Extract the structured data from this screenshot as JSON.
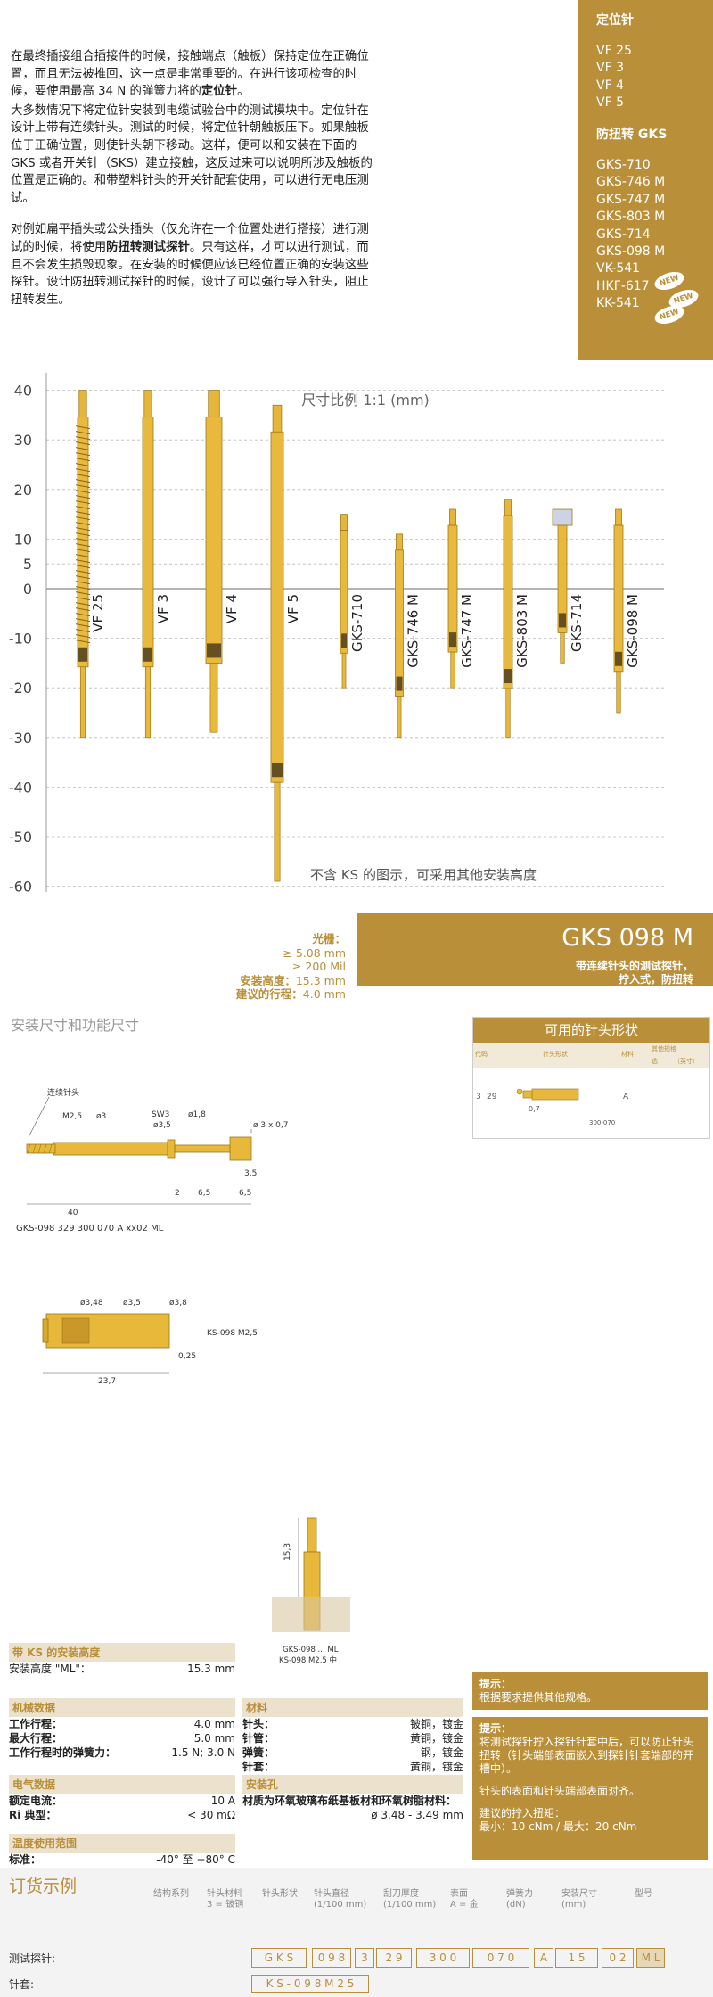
{
  "intro": {
    "p1_a": "在最终插接组合插接件的时候，接触端点（触板）保持定位在正确位置，而且无法被推回，这一点是非常重要的。在进行该项检查的时候，要使用最高 34 N 的弹簧力将的",
    "p1_b": "定位针",
    "p1_c": "。",
    "p2": "大多数情况下将定位针安装到电缆试验台中的测试模块中。定位针在设计上带有连续针头。测试的时候，将定位针朝触板压下。如果触板位于正确位置，则使针头朝下移动。这样，便可以和安装在下面的 GKS 或者开关针（SKS）建立接触，这反过来可以说明所涉及触板的位置是正确的。和带塑料针头的开关针配套使用，可以进行无电压测试。",
    "p3_a": "对例如扁平插头或公头插头（仅允许在一个位置处进行搭接）进行测试的时候，将使用",
    "p3_b": "防扭转测试探针",
    "p3_c": "。只有这样，才可以进行测试，而且不会发生损毁现象。在安装的时候便应该已经位置正确的安装这些探针。设计防扭转测试探针的时候，设计了可以强行导入针头，阻止扭转发生。"
  },
  "sidebar": {
    "heading1": "定位针",
    "group1": [
      "VF 25",
      "VF 3",
      "VF 4",
      "VF 5"
    ],
    "heading2": "防扭转 GKS",
    "group2": [
      "GKS-710",
      "GKS-746 M",
      "GKS-747 M",
      "GKS-803 M",
      "GKS-714",
      "GKS-098 M",
      "VK-541",
      "HKF-617",
      "KK-541"
    ],
    "new_badge": "NEW"
  },
  "scale_chart": {
    "scale_label": "尺寸比例 1:1 (mm)",
    "note": "不含 KS 的图示，可采用其他安装高度",
    "ticks": [
      40,
      30,
      20,
      10,
      5,
      0,
      -10,
      -20,
      -30,
      -40,
      -50,
      -60
    ],
    "probes": [
      {
        "name": "VF 25",
        "top": 40,
        "bottom": -30
      },
      {
        "name": "VF 3",
        "top": 40,
        "bottom": -30
      },
      {
        "name": "VF 4",
        "top": 40,
        "bottom": -29
      },
      {
        "name": "VF 5",
        "top": 37,
        "bottom": -59
      },
      {
        "name": "GKS-710",
        "top": 15,
        "bottom": -20
      },
      {
        "name": "GKS-746 M",
        "top": 11,
        "bottom": -30
      },
      {
        "name": "GKS-747 M",
        "top": 16,
        "bottom": -20
      },
      {
        "name": "GKS-803 M",
        "top": 18,
        "bottom": -30
      },
      {
        "name": "GKS-714",
        "top": 16,
        "bottom": -15
      },
      {
        "name": "GKS-098 M",
        "top": 16,
        "bottom": -25
      }
    ]
  },
  "spec_left": {
    "grid_label": "光栅：",
    "grid_v1": "≥ 5.08 mm",
    "grid_v2": "≥ 200 Mil",
    "install_label": "安装高度：",
    "install_value": "15.3 mm",
    "stroke_label": "建议的行程：",
    "stroke_value": "4.0 mm"
  },
  "banner": {
    "title": "GKS 098 M",
    "sub1": "带连续针头的测试探针，",
    "sub2": "拧入式，防扭转"
  },
  "dims_title": "安装尺寸和功能尺寸",
  "drawing1": {
    "label_lead": "连续针头",
    "m25": "M2,5",
    "d3": "ø3",
    "sw3": "SW3",
    "d35": "ø3,5",
    "d18": "ø1,8",
    "d3x07": "ø 3 x 0,7",
    "dim35": "3,5",
    "dim2": "2",
    "dim65a": "6,5",
    "dim65b": "6,5",
    "dim40": "40",
    "code": "GKS-098 329 300 070 A xx02 ML"
  },
  "drawing2": {
    "d348": "ø3,48",
    "d35": "ø3,5",
    "d38": "ø3,8",
    "dim025": "0,25",
    "dim237": "23,7",
    "label": "KS-098 M2,5"
  },
  "drawing3": {
    "dim153": "15,3",
    "label1": "GKS-098 ... ML",
    "label2": "KS-098 M2,5 中"
  },
  "tip_table": {
    "title": "可用的针头形状",
    "col_code": "代码",
    "col_shape": "针头形状",
    "col_material": "材料",
    "col_other": "其他规格",
    "sub1": "选",
    "sub2": "（英寸）",
    "row_code1": "3",
    "row_code2": "29",
    "row_dim": "0,7",
    "row_part": "300-070",
    "row_material": "A"
  },
  "ks_section": {
    "heading": "带 KS 的安装高度",
    "label": "安装高度 \"ML\"：",
    "value": "15.3 mm"
  },
  "mech": {
    "heading": "机械数据",
    "rows": [
      {
        "label": "工作行程：",
        "value": "4.0 mm"
      },
      {
        "label": "最大行程：",
        "value": "5.0 mm"
      },
      {
        "label": "工作行程时的弹簧力：",
        "value": "1.5 N; 3.0 N"
      }
    ]
  },
  "material": {
    "heading": "材料",
    "rows": [
      {
        "label": "针头：",
        "value": "铍铜，镀金"
      },
      {
        "label": "针管：",
        "value": "黄铜，镀金"
      },
      {
        "label": "弹簧：",
        "value": "钢，镀金"
      },
      {
        "label": "针套：",
        "value": "黄铜，镀金"
      }
    ]
  },
  "electrical": {
    "heading": "电气数据",
    "rows": [
      {
        "label": "额定电流：",
        "value": "10 A"
      },
      {
        "label": "Ri 典型：",
        "value": "< 30 mΩ"
      }
    ]
  },
  "mounting_hole": {
    "heading": "安装孔",
    "text": "材质为环氧玻璃布纸基板材和环氧树脂材料：",
    "value": "ø 3.48 - 3.49 mm"
  },
  "temperature": {
    "heading": "温度使用范围",
    "label": "标准：",
    "value": "-40° 至 +80° C"
  },
  "hint1": {
    "title": "提示：",
    "text": "根据要求提供其他规格。"
  },
  "hint2": {
    "title": "提示：",
    "text1": "将测试探针拧入探针针套中后，可以防止针头扭转（针头端部表面嵌入到探针针套端部的开槽中）。",
    "text2": "针头的表面和针头端部表面对齐。",
    "torque_title": "建议的拧入扭矩：",
    "torque_value": "最小：10 cNm / 最大：20 cNm"
  },
  "order": {
    "heading": "订货示例",
    "labels": [
      "结构系列",
      "针头材料\n3 = 铍铜",
      "针头形状",
      "针头直径\n(1/100 mm)",
      "刮刀厚度\n(1/100 mm)",
      "表面\nA = 金",
      "弹簧力\n(dN)",
      "安装尺寸\n(mm)",
      "型号"
    ],
    "row1_label": "测试探针:",
    "row2_label": "针套:",
    "cells1": [
      "G K S",
      "0 9 8",
      "3",
      "2 9",
      "3 0 0",
      "0 7 0",
      "A",
      "1 5",
      "0 2",
      "M L"
    ],
    "cells2": [
      "K S - 0 9 8   M 2 5"
    ]
  }
}
